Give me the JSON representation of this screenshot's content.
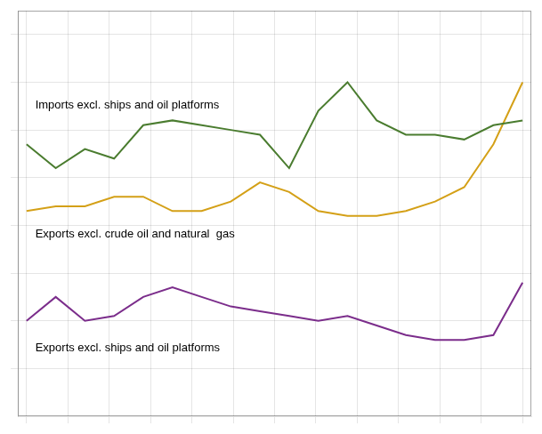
{
  "chart_data": {
    "type": "line",
    "x": [
      0,
      1,
      2,
      3,
      4,
      5,
      6,
      7,
      8,
      9,
      10,
      11,
      12,
      13,
      14,
      15,
      16,
      17
    ],
    "series": [
      {
        "color": "#4a7c2f",
        "values": [
          127,
          122,
          126,
          124,
          131,
          132,
          131,
          130,
          129,
          122,
          134,
          140,
          132,
          129,
          129,
          128,
          131,
          132
        ]
      },
      {
        "color": "#d4a017",
        "values": [
          113,
          114,
          114,
          116,
          116,
          113,
          113,
          115,
          119,
          117,
          113,
          112,
          112,
          113,
          115,
          118,
          127,
          140
        ]
      },
      {
        "color": "#7b2d8b",
        "values": [
          90,
          95,
          90,
          91,
          95,
          97,
          95,
          93,
          92,
          91,
          90,
          91,
          89,
          87,
          86,
          86,
          87,
          98
        ]
      }
    ],
    "annotations": [
      {
        "text": "Imports excl. ships and oil platforms",
        "x": 0.3,
        "y": 134
      },
      {
        "text": "Exports excl. crude oil and natural  gas",
        "x": 0.3,
        "y": 107
      },
      {
        "text": "Exports excl. ships and oil platforms",
        "x": 0.3,
        "y": 83
      }
    ],
    "xlim": [
      -0.3,
      17.3
    ],
    "xticks": [
      0,
      1.4166666666666667,
      2.8333333333333335,
      4.25,
      5.666666666666667,
      7.083333333333334,
      8.5,
      9.916666666666668,
      11.333333333333334,
      12.75,
      14.166666666666668,
      15.583333333333334,
      17
    ],
    "ylim": [
      70,
      155
    ],
    "yticks": [
      80,
      90,
      100,
      110,
      120,
      130,
      140,
      150
    ],
    "tick_labels": false,
    "grid": true
  }
}
